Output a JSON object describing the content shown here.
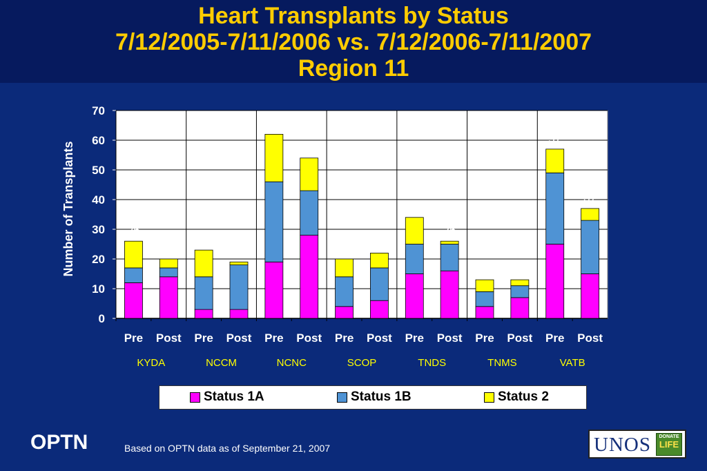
{
  "title": {
    "line1": "Heart Transplants by Status",
    "line2": "7/12/2005-7/11/2006 vs. 7/12/2006-7/11/2007",
    "line3": "Region 11"
  },
  "chart_data": {
    "type": "bar",
    "stacked": true,
    "categories": [
      {
        "group": "KYDA",
        "period": "Pre"
      },
      {
        "group": "KYDA",
        "period": "Post"
      },
      {
        "group": "NCCM",
        "period": "Pre"
      },
      {
        "group": "NCCM",
        "period": "Post"
      },
      {
        "group": "NCNC",
        "period": "Pre"
      },
      {
        "group": "NCNC",
        "period": "Post"
      },
      {
        "group": "SCOP",
        "period": "Pre"
      },
      {
        "group": "SCOP",
        "period": "Post"
      },
      {
        "group": "TNDS",
        "period": "Pre"
      },
      {
        "group": "TNDS",
        "period": "Post"
      },
      {
        "group": "TNMS",
        "period": "Pre"
      },
      {
        "group": "TNMS",
        "period": "Post"
      },
      {
        "group": "VATB",
        "period": "Pre"
      },
      {
        "group": "VATB",
        "period": "Post"
      }
    ],
    "groups": [
      "KYDA",
      "NCCM",
      "NCNC",
      "SCOP",
      "TNDS",
      "TNMS",
      "VATB"
    ],
    "series": [
      {
        "name": "Status 1A",
        "color": "#ff00ff",
        "values": [
          12,
          14,
          3,
          3,
          19,
          28,
          4,
          6,
          15,
          16,
          4,
          7,
          25,
          15
        ]
      },
      {
        "name": "Status 1B",
        "color": "#4f93d4",
        "values": [
          5,
          3,
          11,
          15,
          27,
          15,
          10,
          11,
          10,
          9,
          5,
          4,
          24,
          18
        ]
      },
      {
        "name": "Status 2",
        "color": "#ffff00",
        "values": [
          9,
          3,
          9,
          1,
          16,
          11,
          6,
          5,
          9,
          1,
          4,
          2,
          8,
          4
        ]
      }
    ],
    "totals": [
      26,
      20,
      23,
      19,
      62,
      54,
      20,
      22,
      34,
      26,
      13,
      13,
      57,
      37
    ],
    "ylabel": "Number of Transplants",
    "xlabel": "",
    "ylim": [
      0,
      70
    ],
    "yticks": [
      0,
      10,
      20,
      30,
      40,
      50,
      60,
      70
    ],
    "grid": true,
    "legend_position": "bottom",
    "plot_background": "#ffffff"
  },
  "legend": {
    "items": [
      {
        "label": "Status 1A",
        "color": "#ff00ff"
      },
      {
        "label": "Status 1B",
        "color": "#4f93d4"
      },
      {
        "label": "Status 2",
        "color": "#ffff00"
      }
    ]
  },
  "footer": {
    "brand": "OPTN",
    "note": "Based on OPTN data as of  September 21, 2007",
    "logo_text": "UNOS",
    "badge_line1": "DONATE",
    "badge_line2": "LIFE"
  }
}
